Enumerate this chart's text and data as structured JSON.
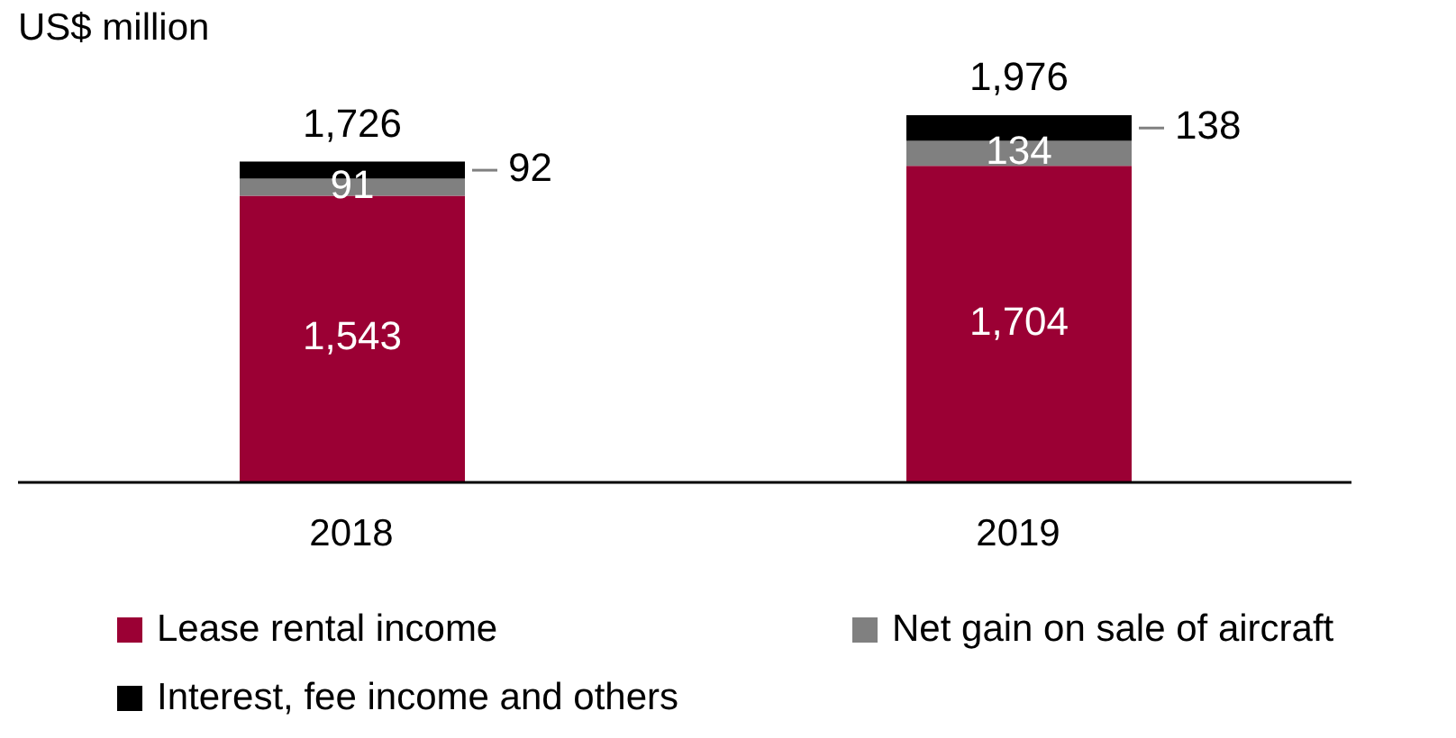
{
  "chart_data": {
    "type": "bar",
    "ylabel": "US$ million",
    "categories": [
      "2018",
      "2019"
    ],
    "stacked": true,
    "legend": "bottom",
    "series": [
      {
        "name": "Lease rental income",
        "color": "#9b0034",
        "values": [
          1543,
          1704
        ],
        "value_labels": [
          "1,543",
          "1,704"
        ]
      },
      {
        "name": "Net gain on sale of aircraft",
        "color": "#808080",
        "values": [
          91,
          134
        ],
        "value_labels": [
          "91",
          "134"
        ]
      },
      {
        "name": "Interest, fee income and others",
        "color": "#000000",
        "values": [
          92,
          138
        ],
        "value_labels": [
          "92",
          "138"
        ]
      }
    ],
    "totals": [
      "1,726",
      "1,976"
    ]
  }
}
